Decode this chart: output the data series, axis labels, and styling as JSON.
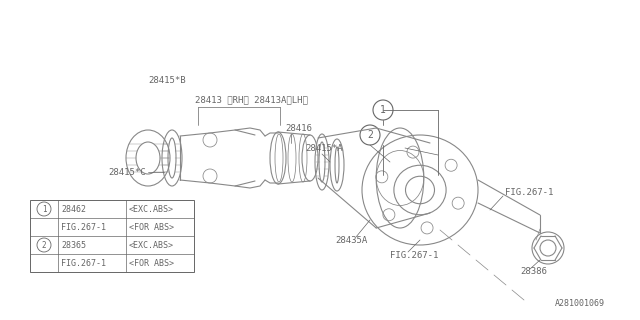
{
  "bg_color": "#ffffff",
  "line_color": "#888888",
  "text_color": "#666666",
  "watermark": "A281001069",
  "table_rows": [
    [
      "1",
      "28462",
      "<EXC.ABS>"
    ],
    [
      "",
      "FIG.267-1",
      "<FOR ABS>"
    ],
    [
      "2",
      "28365",
      "<EXC.ABS>"
    ],
    [
      "",
      "FIG.267-1",
      "<FOR ABS>"
    ]
  ]
}
